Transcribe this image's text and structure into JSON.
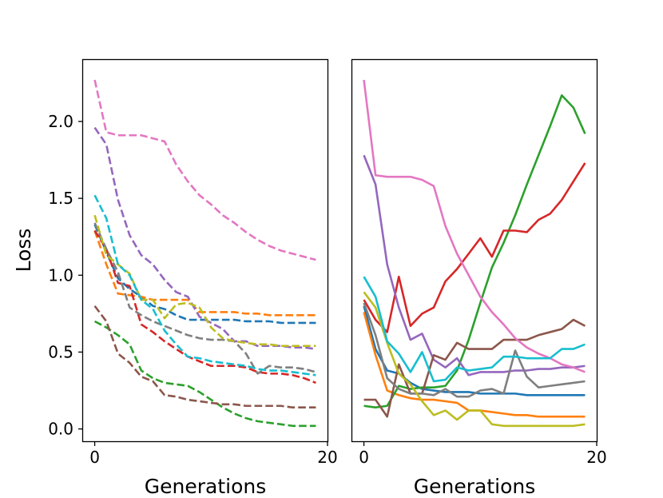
{
  "chart_data": [
    {
      "type": "line",
      "panel": "left",
      "linestyle": "dashed",
      "xlabel": "Generations",
      "ylabel": "Loss",
      "xlim": [
        -1.0,
        20.0
      ],
      "ylim": [
        -0.08,
        2.4
      ],
      "xticks": [
        0,
        20
      ],
      "xtick_labels": [
        "0",
        "20"
      ],
      "yticks": [
        0.0,
        0.5,
        1.0,
        1.5,
        2.0
      ],
      "ytick_labels": [
        "0.0",
        "0.5",
        "1.0",
        "1.5",
        "2.0"
      ],
      "x": [
        0,
        1,
        2,
        3,
        4,
        5,
        6,
        7,
        8,
        9,
        10,
        11,
        12,
        13,
        14,
        15,
        16,
        17,
        18,
        19
      ],
      "series": [
        {
          "name": "blue",
          "color": "#1f77b4",
          "values": [
            1.33,
            1.15,
            0.98,
            0.91,
            0.86,
            0.8,
            0.78,
            0.74,
            0.71,
            0.71,
            0.71,
            0.71,
            0.71,
            0.7,
            0.7,
            0.7,
            0.69,
            0.69,
            0.69,
            0.69
          ]
        },
        {
          "name": "orange",
          "color": "#ff7f0e",
          "values": [
            1.29,
            1.07,
            0.88,
            0.87,
            0.86,
            0.84,
            0.84,
            0.84,
            0.84,
            0.76,
            0.76,
            0.76,
            0.76,
            0.75,
            0.75,
            0.74,
            0.74,
            0.74,
            0.74,
            0.74
          ]
        },
        {
          "name": "green",
          "color": "#2ca02c",
          "values": [
            0.7,
            0.66,
            0.61,
            0.55,
            0.38,
            0.33,
            0.3,
            0.29,
            0.28,
            0.24,
            0.19,
            0.14,
            0.1,
            0.07,
            0.05,
            0.04,
            0.03,
            0.02,
            0.02,
            0.02
          ]
        },
        {
          "name": "red",
          "color": "#d62728",
          "values": [
            1.29,
            1.17,
            0.95,
            0.93,
            0.68,
            0.63,
            0.57,
            0.52,
            0.47,
            0.44,
            0.41,
            0.41,
            0.41,
            0.4,
            0.37,
            0.36,
            0.36,
            0.35,
            0.33,
            0.3
          ]
        },
        {
          "name": "purple",
          "color": "#9467bd",
          "values": [
            1.96,
            1.85,
            1.49,
            1.26,
            1.13,
            1.07,
            0.97,
            0.89,
            0.86,
            0.73,
            0.69,
            0.65,
            0.57,
            0.57,
            0.54,
            0.54,
            0.54,
            0.53,
            0.53,
            0.52
          ]
        },
        {
          "name": "brown",
          "color": "#8c564b",
          "values": [
            0.8,
            0.7,
            0.49,
            0.43,
            0.34,
            0.31,
            0.22,
            0.21,
            0.19,
            0.18,
            0.17,
            0.16,
            0.16,
            0.15,
            0.15,
            0.15,
            0.15,
            0.14,
            0.14,
            0.14
          ]
        },
        {
          "name": "pink",
          "color": "#e377c2",
          "values": [
            2.27,
            1.93,
            1.91,
            1.91,
            1.91,
            1.89,
            1.87,
            1.72,
            1.61,
            1.52,
            1.46,
            1.39,
            1.34,
            1.28,
            1.23,
            1.19,
            1.16,
            1.14,
            1.12,
            1.1
          ]
        },
        {
          "name": "gray",
          "color": "#7f7f7f",
          "values": [
            1.34,
            1.17,
            1.02,
            0.79,
            0.74,
            0.7,
            0.67,
            0.64,
            0.61,
            0.59,
            0.58,
            0.58,
            0.57,
            0.49,
            0.36,
            0.41,
            0.4,
            0.4,
            0.39,
            0.37
          ]
        },
        {
          "name": "olive",
          "color": "#bcbd22",
          "values": [
            1.39,
            1.13,
            1.07,
            1.01,
            0.84,
            0.84,
            0.72,
            0.81,
            0.82,
            0.79,
            0.66,
            0.59,
            0.57,
            0.56,
            0.55,
            0.55,
            0.54,
            0.54,
            0.54,
            0.54
          ]
        },
        {
          "name": "cyan",
          "color": "#17becf",
          "values": [
            1.52,
            1.37,
            1.07,
            1.0,
            0.84,
            0.78,
            0.64,
            0.55,
            0.47,
            0.46,
            0.44,
            0.43,
            0.42,
            0.41,
            0.39,
            0.38,
            0.38,
            0.37,
            0.36,
            0.35
          ]
        }
      ]
    },
    {
      "type": "line",
      "panel": "right",
      "linestyle": "solid",
      "xlabel": "Generations",
      "ylabel": "",
      "xlim": [
        -1.0,
        20.0
      ],
      "ylim": [
        -0.08,
        2.4
      ],
      "xticks": [
        0,
        20
      ],
      "xtick_labels": [
        "0",
        "20"
      ],
      "yticks": [],
      "ytick_labels": [],
      "x": [
        0,
        1,
        2,
        3,
        4,
        5,
        6,
        7,
        8,
        9,
        10,
        11,
        12,
        13,
        14,
        15,
        16,
        17,
        18,
        19
      ],
      "series": [
        {
          "name": "blue",
          "color": "#1f77b4",
          "values": [
            0.8,
            0.52,
            0.38,
            0.36,
            0.3,
            0.26,
            0.25,
            0.24,
            0.24,
            0.24,
            0.23,
            0.23,
            0.23,
            0.23,
            0.22,
            0.22,
            0.22,
            0.22,
            0.22,
            0.22
          ]
        },
        {
          "name": "orange",
          "color": "#ff7f0e",
          "values": [
            0.76,
            0.48,
            0.25,
            0.22,
            0.2,
            0.19,
            0.19,
            0.18,
            0.17,
            0.12,
            0.12,
            0.11,
            0.1,
            0.09,
            0.09,
            0.08,
            0.08,
            0.08,
            0.08,
            0.08
          ]
        },
        {
          "name": "green",
          "color": "#2ca02c",
          "values": [
            0.15,
            0.14,
            0.15,
            0.28,
            0.26,
            0.27,
            0.27,
            0.28,
            0.38,
            0.58,
            0.82,
            1.05,
            1.21,
            1.39,
            1.59,
            1.78,
            1.97,
            2.17,
            2.09,
            1.92
          ]
        },
        {
          "name": "red",
          "color": "#d62728",
          "values": [
            0.84,
            0.71,
            0.63,
            0.99,
            0.67,
            0.75,
            0.79,
            0.96,
            1.04,
            1.14,
            1.24,
            1.12,
            1.29,
            1.29,
            1.28,
            1.36,
            1.4,
            1.49,
            1.61,
            1.73
          ]
        },
        {
          "name": "purple",
          "color": "#9467bd",
          "values": [
            1.78,
            1.59,
            1.07,
            0.79,
            0.58,
            0.62,
            0.45,
            0.4,
            0.46,
            0.35,
            0.37,
            0.37,
            0.37,
            0.38,
            0.38,
            0.39,
            0.39,
            0.4,
            0.4,
            0.41
          ]
        },
        {
          "name": "brown",
          "color": "#8c564b",
          "values": [
            0.19,
            0.19,
            0.08,
            0.42,
            0.23,
            0.23,
            0.48,
            0.45,
            0.56,
            0.52,
            0.52,
            0.52,
            0.58,
            0.58,
            0.58,
            0.61,
            0.63,
            0.65,
            0.71,
            0.67
          ]
        },
        {
          "name": "pink",
          "color": "#e377c2",
          "values": [
            2.27,
            1.65,
            1.64,
            1.64,
            1.64,
            1.62,
            1.58,
            1.32,
            1.14,
            1.0,
            0.86,
            0.76,
            0.68,
            0.59,
            0.53,
            0.49,
            0.46,
            0.42,
            0.4,
            0.37
          ]
        },
        {
          "name": "gray",
          "color": "#7f7f7f",
          "values": [
            0.82,
            0.61,
            0.33,
            0.26,
            0.23,
            0.23,
            0.22,
            0.26,
            0.21,
            0.21,
            0.25,
            0.26,
            0.23,
            0.51,
            0.34,
            0.27,
            0.28,
            0.29,
            0.3,
            0.31
          ]
        },
        {
          "name": "olive",
          "color": "#bcbd22",
          "values": [
            0.89,
            0.79,
            0.56,
            0.36,
            0.29,
            0.18,
            0.09,
            0.12,
            0.06,
            0.12,
            0.12,
            0.03,
            0.02,
            0.02,
            0.02,
            0.02,
            0.02,
            0.02,
            0.02,
            0.03
          ]
        },
        {
          "name": "cyan",
          "color": "#17becf",
          "values": [
            0.99,
            0.86,
            0.57,
            0.49,
            0.37,
            0.5,
            0.31,
            0.32,
            0.4,
            0.38,
            0.39,
            0.4,
            0.47,
            0.47,
            0.46,
            0.46,
            0.46,
            0.52,
            0.52,
            0.55
          ]
        }
      ]
    }
  ]
}
